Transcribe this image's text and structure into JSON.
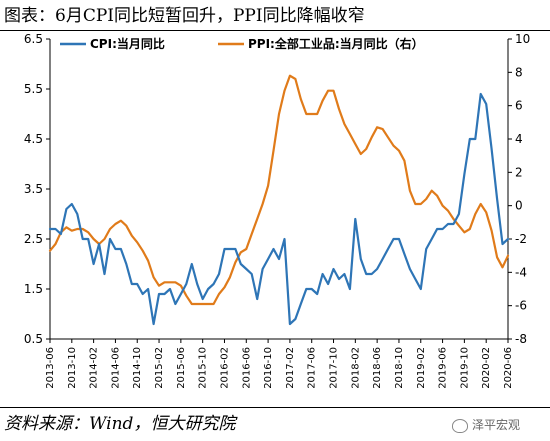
{
  "title": "图表：6月CPI同比短暂回升，PPI同比降幅收窄",
  "source": "资料来源：Wind，恒大研究院",
  "watermark": "泽平宏观",
  "colors": {
    "cpi": "#2E75B6",
    "ppi": "#E07B1A"
  },
  "chart_data": {
    "type": "line",
    "title": "图表：6月CPI同比短暂回升，PPI同比降幅收窄",
    "xlabel": "",
    "ylabel": "",
    "legend_position": "top",
    "grid": false,
    "x": [
      "2013-06",
      "2013-07",
      "2013-08",
      "2013-09",
      "2013-10",
      "2013-11",
      "2013-12",
      "2014-01",
      "2014-02",
      "2014-03",
      "2014-04",
      "2014-05",
      "2014-06",
      "2014-07",
      "2014-08",
      "2014-09",
      "2014-10",
      "2014-11",
      "2014-12",
      "2015-01",
      "2015-02",
      "2015-03",
      "2015-04",
      "2015-05",
      "2015-06",
      "2015-07",
      "2015-08",
      "2015-09",
      "2015-10",
      "2015-11",
      "2015-12",
      "2016-01",
      "2016-02",
      "2016-03",
      "2016-04",
      "2016-05",
      "2016-06",
      "2016-07",
      "2016-08",
      "2016-09",
      "2016-10",
      "2016-11",
      "2016-12",
      "2017-01",
      "2017-02",
      "2017-03",
      "2017-04",
      "2017-05",
      "2017-06",
      "2017-07",
      "2017-08",
      "2017-09",
      "2017-10",
      "2017-11",
      "2017-12",
      "2018-01",
      "2018-02",
      "2018-03",
      "2018-04",
      "2018-05",
      "2018-06",
      "2018-07",
      "2018-08",
      "2018-09",
      "2018-10",
      "2018-11",
      "2018-12",
      "2019-01",
      "2019-02",
      "2019-03",
      "2019-04",
      "2019-05",
      "2019-06",
      "2019-07",
      "2019-08",
      "2019-09",
      "2019-10",
      "2019-11",
      "2019-12",
      "2020-01",
      "2020-02",
      "2020-03",
      "2020-04",
      "2020-05",
      "2020-06"
    ],
    "x_tick_labels": [
      "2013-06",
      "2013-10",
      "2014-02",
      "2014-06",
      "2014-10",
      "2015-02",
      "2015-06",
      "2015-10",
      "2016-02",
      "2016-06",
      "2016-10",
      "2017-02",
      "2017-06",
      "2017-10",
      "2018-02",
      "2018-06",
      "2018-10",
      "2019-02",
      "2019-06",
      "2019-10",
      "2020-02",
      "2020-06"
    ],
    "y_left": {
      "min": 0.5,
      "max": 6.5,
      "ticks": [
        0.5,
        1.5,
        2.5,
        3.5,
        4.5,
        5.5,
        6.5
      ]
    },
    "y_right": {
      "min": -8,
      "max": 10,
      "ticks": [
        -8,
        -6,
        -4,
        -2,
        0,
        2,
        4,
        6,
        8,
        10
      ]
    },
    "series": [
      {
        "name": "CPI:当月同比",
        "axis": "left",
        "values": [
          2.7,
          2.7,
          2.6,
          3.1,
          3.2,
          3.0,
          2.5,
          2.5,
          2.0,
          2.4,
          1.8,
          2.5,
          2.3,
          2.3,
          2.0,
          1.6,
          1.6,
          1.4,
          1.5,
          0.8,
          1.4,
          1.4,
          1.5,
          1.2,
          1.4,
          1.6,
          2.0,
          1.6,
          1.3,
          1.5,
          1.6,
          1.8,
          2.3,
          2.3,
          2.3,
          2.0,
          1.9,
          1.8,
          1.3,
          1.9,
          2.1,
          2.3,
          2.1,
          2.5,
          0.8,
          0.9,
          1.2,
          1.5,
          1.5,
          1.4,
          1.8,
          1.6,
          1.9,
          1.7,
          1.8,
          1.5,
          2.9,
          2.1,
          1.8,
          1.8,
          1.9,
          2.1,
          2.3,
          2.5,
          2.5,
          2.2,
          1.9,
          1.7,
          1.5,
          2.3,
          2.5,
          2.7,
          2.7,
          2.8,
          2.8,
          3.0,
          3.8,
          4.5,
          4.5,
          5.4,
          5.2,
          4.3,
          3.3,
          2.4,
          2.5
        ]
      },
      {
        "name": "PPI:全部工业品:当月同比（右）",
        "axis": "right",
        "values": [
          -2.7,
          -2.3,
          -1.6,
          -1.3,
          -1.5,
          -1.4,
          -1.4,
          -1.6,
          -2.0,
          -2.3,
          -2.0,
          -1.4,
          -1.1,
          -0.9,
          -1.2,
          -1.8,
          -2.2,
          -2.7,
          -3.3,
          -4.3,
          -4.8,
          -4.6,
          -4.6,
          -4.6,
          -4.8,
          -5.4,
          -5.9,
          -5.9,
          -5.9,
          -5.9,
          -5.9,
          -5.3,
          -4.9,
          -4.3,
          -3.4,
          -2.8,
          -2.6,
          -1.7,
          -0.8,
          0.1,
          1.2,
          3.3,
          5.5,
          6.9,
          7.8,
          7.6,
          6.4,
          5.5,
          5.5,
          5.5,
          6.3,
          6.9,
          6.9,
          5.8,
          4.9,
          4.3,
          3.7,
          3.1,
          3.4,
          4.1,
          4.7,
          4.6,
          4.1,
          3.6,
          3.3,
          2.7,
          0.9,
          0.1,
          0.1,
          0.4,
          0.9,
          0.6,
          0.0,
          -0.3,
          -0.8,
          -1.2,
          -1.6,
          -1.4,
          -0.5,
          0.1,
          -0.4,
          -1.5,
          -3.1,
          -3.7,
          -3.0
        ]
      }
    ]
  }
}
